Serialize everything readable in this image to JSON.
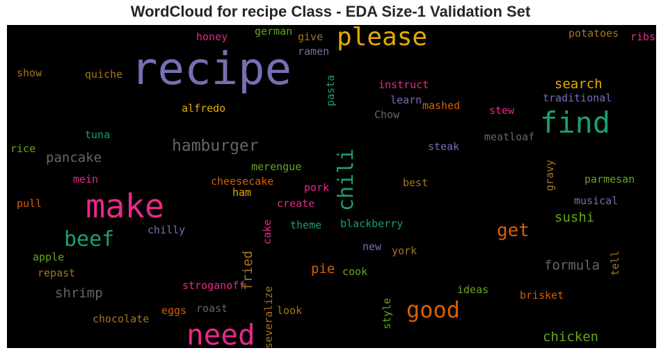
{
  "title": "WordCloud for recipe Class - EDA Size-1 Validation Set",
  "chart_data": {
    "type": "wordcloud",
    "title": "WordCloud for recipe Class - EDA Size-1 Validation Set",
    "background": "#000000",
    "words": [
      {
        "text": "recipe",
        "weight": 1.0,
        "color": "#7570b3"
      },
      {
        "text": "make",
        "weight": 0.58,
        "color": "#e7298a"
      },
      {
        "text": "find",
        "weight": 0.52,
        "color": "#1b9e77"
      },
      {
        "text": "need",
        "weight": 0.5,
        "color": "#e7298a"
      },
      {
        "text": "please",
        "weight": 0.45,
        "color": "#e6ab02"
      },
      {
        "text": "good",
        "weight": 0.4,
        "color": "#d95f02"
      },
      {
        "text": "chili",
        "weight": 0.38,
        "color": "#1b9e77",
        "vertical": true
      },
      {
        "text": "beef",
        "weight": 0.36,
        "color": "#1b9e77"
      },
      {
        "text": "hamburger",
        "weight": 0.32,
        "color": "#666666"
      },
      {
        "text": "get",
        "weight": 0.32,
        "color": "#d95f02"
      },
      {
        "text": "fried",
        "weight": 0.27,
        "color": "#a6761d",
        "vertical": true
      },
      {
        "text": "search",
        "weight": 0.26,
        "color": "#e6ab02"
      },
      {
        "text": "formula",
        "weight": 0.26,
        "color": "#666666"
      },
      {
        "text": "pancake",
        "weight": 0.24,
        "color": "#666666"
      },
      {
        "text": "sushi",
        "weight": 0.24,
        "color": "#66a61e"
      },
      {
        "text": "pie",
        "weight": 0.24,
        "color": "#d95f02"
      },
      {
        "text": "shrimp",
        "weight": 0.24,
        "color": "#666666"
      },
      {
        "text": "chicken",
        "weight": 0.24,
        "color": "#66a61e"
      },
      {
        "text": "traditional",
        "weight": 0.2,
        "color": "#7570b3"
      },
      {
        "text": "pasta",
        "weight": 0.2,
        "color": "#1b9e77",
        "vertical": true
      },
      {
        "text": "quiche",
        "weight": 0.2,
        "color": "#a6761d"
      },
      {
        "text": "show",
        "weight": 0.2,
        "color": "#a6761d"
      },
      {
        "text": "alfredo",
        "weight": 0.2,
        "color": "#e6ab02"
      },
      {
        "text": "instruct",
        "weight": 0.2,
        "color": "#e7298a"
      },
      {
        "text": "learn",
        "weight": 0.2,
        "color": "#7570b3"
      },
      {
        "text": "mashed",
        "weight": 0.2,
        "color": "#d95f02"
      },
      {
        "text": "Chow",
        "weight": 0.2,
        "color": "#666666"
      },
      {
        "text": "stew",
        "weight": 0.2,
        "color": "#e7298a"
      },
      {
        "text": "meatloaf",
        "weight": 0.2,
        "color": "#666666"
      },
      {
        "text": "steak",
        "weight": 0.2,
        "color": "#7570b3"
      },
      {
        "text": "tuna",
        "weight": 0.2,
        "color": "#1b9e77"
      },
      {
        "text": "rice",
        "weight": 0.2,
        "color": "#66a61e"
      },
      {
        "text": "mein",
        "weight": 0.2,
        "color": "#e7298a"
      },
      {
        "text": "pull",
        "weight": 0.2,
        "color": "#d95f02"
      },
      {
        "text": "merengue",
        "weight": 0.2,
        "color": "#66a61e"
      },
      {
        "text": "cheesecake",
        "weight": 0.2,
        "color": "#d95f02"
      },
      {
        "text": "ham",
        "weight": 0.2,
        "color": "#e6ab02"
      },
      {
        "text": "pork",
        "weight": 0.2,
        "color": "#e7298a"
      },
      {
        "text": "best",
        "weight": 0.2,
        "color": "#a6761d"
      },
      {
        "text": "gravy",
        "weight": 0.2,
        "color": "#a6761d",
        "vertical": true
      },
      {
        "text": "parmesan",
        "weight": 0.2,
        "color": "#66a61e"
      },
      {
        "text": "musical",
        "weight": 0.2,
        "color": "#7570b3"
      },
      {
        "text": "create",
        "weight": 0.2,
        "color": "#e7298a"
      },
      {
        "text": "chilly",
        "weight": 0.2,
        "color": "#7570b3"
      },
      {
        "text": "cake",
        "weight": 0.2,
        "color": "#e7298a",
        "vertical": true
      },
      {
        "text": "theme",
        "weight": 0.2,
        "color": "#1b9e77"
      },
      {
        "text": "blackberry",
        "weight": 0.2,
        "color": "#1b9e77"
      },
      {
        "text": "new",
        "weight": 0.2,
        "color": "#7570b3"
      },
      {
        "text": "york",
        "weight": 0.2,
        "color": "#a6761d"
      },
      {
        "text": "apple",
        "weight": 0.2,
        "color": "#66a61e"
      },
      {
        "text": "repast",
        "weight": 0.2,
        "color": "#a6761d"
      },
      {
        "text": "cook",
        "weight": 0.2,
        "color": "#66a61e"
      },
      {
        "text": "tell",
        "weight": 0.2,
        "color": "#a6761d",
        "vertical": true
      },
      {
        "text": "stroganoff",
        "weight": 0.2,
        "color": "#e7298a"
      },
      {
        "text": "severalize",
        "weight": 0.2,
        "color": "#a6761d",
        "vertical": true
      },
      {
        "text": "ideas",
        "weight": 0.2,
        "color": "#66a61e"
      },
      {
        "text": "brisket",
        "weight": 0.2,
        "color": "#d95f02"
      },
      {
        "text": "roast",
        "weight": 0.2,
        "color": "#666666"
      },
      {
        "text": "look",
        "weight": 0.2,
        "color": "#a6761d"
      },
      {
        "text": "eggs",
        "weight": 0.2,
        "color": "#d95f02"
      },
      {
        "text": "style",
        "weight": 0.2,
        "color": "#66a61e",
        "vertical": true
      },
      {
        "text": "chocolate",
        "weight": 0.2,
        "color": "#a6761d"
      },
      {
        "text": "honey",
        "weight": 0.2,
        "color": "#e7298a"
      },
      {
        "text": "german",
        "weight": 0.2,
        "color": "#66a61e"
      },
      {
        "text": "give",
        "weight": 0.2,
        "color": "#a6761d"
      },
      {
        "text": "ramen",
        "weight": 0.2,
        "color": "#7570b3"
      },
      {
        "text": "potatoes",
        "weight": 0.2,
        "color": "#a6761d"
      },
      {
        "text": "ribs",
        "weight": 0.2,
        "color": "#e7298a"
      }
    ]
  }
}
